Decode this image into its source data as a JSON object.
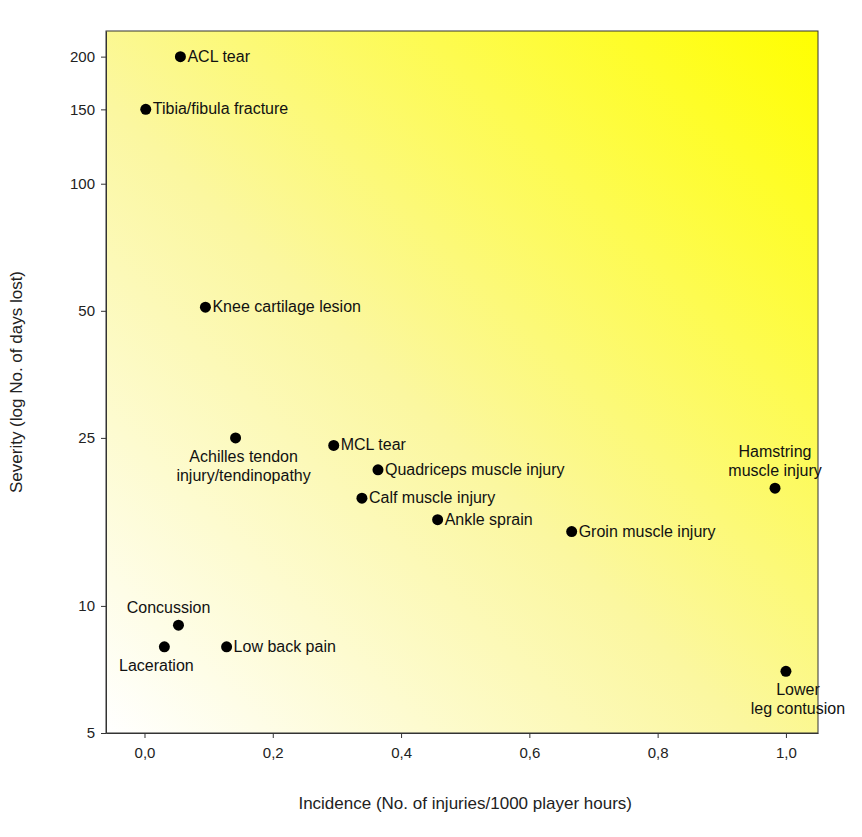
{
  "chart_data": {
    "type": "scatter",
    "x_label": "Incidence (No. of injuries/1000 player hours)",
    "y_label": "Severity (log No. of days lost)",
    "labels": [
      "ACL tear",
      "Tibia/fibula fracture",
      "Knee cartilage lesion",
      "Achilles tendon\ninjury/tendinopathy",
      "MCL tear",
      "Quadriceps muscle injury",
      "Calf muscle injury",
      "Ankle sprain",
      "Groin muscle injury",
      "Hamstring\nmuscle injury",
      "Concussion",
      "Laceration",
      "Low back pain",
      "Lower\nleg contusion"
    ],
    "x": [
      0.056,
      0.002,
      0.095,
      0.142,
      0.295,
      0.364,
      0.339,
      0.457,
      0.666,
      0.983,
      0.053,
      0.031,
      0.128,
      1.0
    ],
    "values": [
      200,
      150,
      51,
      25,
      24,
      21,
      18,
      16,
      15,
      19,
      9,
      8,
      8,
      7
    ],
    "color": "#000000",
    "marker": "circle",
    "log": "y",
    "grid": false,
    "xlim": [
      -0.06,
      1.05
    ],
    "xticks": [
      {
        "value": 0,
        "label": "0,0"
      },
      {
        "value": 0.2,
        "label": "0,2"
      },
      {
        "value": 0.4,
        "label": "0,4"
      },
      {
        "value": 0.6,
        "label": "0,6"
      },
      {
        "value": 0.8,
        "label": "0,8"
      },
      {
        "value": 1,
        "label": "1,0"
      }
    ],
    "ylim": [
      5,
      230
    ],
    "yticks": [
      5,
      10,
      25,
      50,
      100,
      150,
      200
    ]
  }
}
